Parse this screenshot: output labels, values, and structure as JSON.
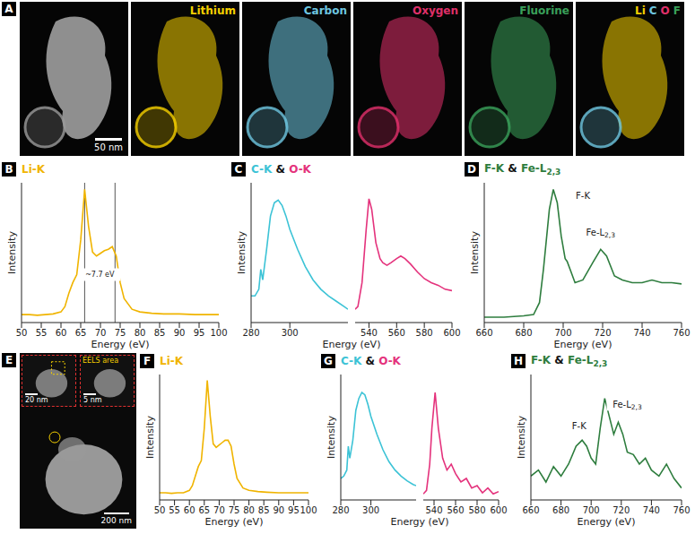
{
  "figure": {
    "A": {
      "letter": "A",
      "tiles": [
        {
          "scale_bar": "50 nm"
        },
        {
          "label": "Lithium",
          "color": "#f5d000"
        },
        {
          "label": "Carbon",
          "color": "#6ec6e0"
        },
        {
          "label": "Oxygen",
          "color": "#e0306a"
        },
        {
          "label": "Fluorine",
          "color": "#3aa05a"
        },
        {
          "labels": [
            {
              "text": "Li",
              "color": "#f5d000"
            },
            {
              "text": "C",
              "color": "#6ec6e0"
            },
            {
              "text": "O",
              "color": "#e0306a"
            },
            {
              "text": "F",
              "color": "#3aa05a"
            }
          ]
        }
      ]
    },
    "E": {
      "letter": "E",
      "scale_bar": "200 nm",
      "insets": [
        {
          "scale_bar": "20 nm"
        },
        {
          "label": "EELS area",
          "scale_bar": "5 nm"
        }
      ]
    }
  },
  "chart_data": [
    {
      "panel": "B",
      "type": "line",
      "title": "Li-K",
      "x_label": "Energy (eV)",
      "y_label": "Intensity",
      "tick_labels": "x",
      "xlim": [
        50,
        100
      ],
      "xticks": [
        50,
        55,
        60,
        65,
        70,
        75,
        80,
        85,
        90,
        95,
        100
      ],
      "ylim": [
        0,
        1.05
      ],
      "yticks": [],
      "reference_lines": [
        66,
        73.7
      ],
      "annotations": [
        {
          "text": "~7.7 eV",
          "x": 69.85,
          "y": 0.36
        }
      ],
      "series": [
        {
          "color": "#f0b400",
          "x": [
            50,
            52,
            54,
            56,
            58,
            60,
            61,
            62,
            63,
            64,
            65,
            66,
            67,
            68,
            69,
            70,
            71,
            72,
            73,
            74,
            75,
            76,
            78,
            80,
            83,
            86,
            90,
            94,
            98,
            100
          ],
          "values": [
            0.06,
            0.06,
            0.055,
            0.06,
            0.065,
            0.08,
            0.12,
            0.22,
            0.3,
            0.36,
            0.62,
            1.0,
            0.72,
            0.53,
            0.5,
            0.52,
            0.54,
            0.55,
            0.57,
            0.5,
            0.3,
            0.18,
            0.1,
            0.08,
            0.07,
            0.065,
            0.065,
            0.06,
            0.06,
            0.06
          ]
        }
      ]
    },
    {
      "panel": "C",
      "type": "line",
      "title": "C-K & O-K",
      "x_label": "Energy (eV)",
      "y_label": "Intensity",
      "tick_labels": "x",
      "ylim": [
        0,
        1.05
      ],
      "yticks": [],
      "series": [
        {
          "color": "#3cc3d6",
          "xlim": [
            280,
            330
          ],
          "xticks": [
            280,
            300
          ],
          "x": [
            280,
            282,
            284,
            285,
            286,
            288,
            290,
            292,
            294,
            296,
            298,
            300,
            304,
            308,
            312,
            316,
            320,
            324,
            328,
            330
          ],
          "values": [
            0.2,
            0.2,
            0.25,
            0.4,
            0.32,
            0.55,
            0.8,
            0.9,
            0.92,
            0.88,
            0.8,
            0.7,
            0.55,
            0.42,
            0.32,
            0.25,
            0.2,
            0.16,
            0.12,
            0.1
          ]
        },
        {
          "color": "#e4327c",
          "xlim": [
            530,
            600
          ],
          "xticks": [
            540,
            560,
            580,
            600
          ],
          "x": [
            530,
            532,
            535,
            538,
            540,
            542,
            545,
            548,
            550,
            553,
            556,
            560,
            563,
            566,
            570,
            575,
            580,
            585,
            590,
            595,
            600
          ],
          "values": [
            0.1,
            0.12,
            0.3,
            0.7,
            0.93,
            0.85,
            0.6,
            0.48,
            0.45,
            0.43,
            0.45,
            0.48,
            0.5,
            0.48,
            0.44,
            0.38,
            0.33,
            0.3,
            0.28,
            0.25,
            0.24
          ]
        }
      ]
    },
    {
      "panel": "D",
      "type": "line",
      "title": "F-K & Fe-L2,3",
      "x_label": "Energy (eV)",
      "y_label": "Intensity",
      "tick_labels": "x",
      "xlim": [
        660,
        760
      ],
      "xticks": [
        660,
        680,
        700,
        720,
        740,
        760
      ],
      "ylim": [
        0,
        1.05
      ],
      "yticks": [],
      "annotations": [
        {
          "text": "F-K",
          "x": 710,
          "y": 0.95
        },
        {
          "text": "Fe-L2,3",
          "x": 719,
          "y": 0.68
        }
      ],
      "series": [
        {
          "color": "#2e7d3e",
          "x": [
            660,
            670,
            680,
            685,
            688,
            690,
            693,
            695,
            697,
            699,
            701,
            702,
            704,
            706,
            710,
            715,
            719,
            722,
            726,
            730,
            735,
            740,
            745,
            750,
            755,
            760
          ],
          "values": [
            0.04,
            0.04,
            0.05,
            0.06,
            0.15,
            0.4,
            0.85,
            1.0,
            0.9,
            0.65,
            0.48,
            0.46,
            0.38,
            0.3,
            0.32,
            0.45,
            0.55,
            0.5,
            0.35,
            0.32,
            0.3,
            0.3,
            0.32,
            0.3,
            0.3,
            0.29
          ]
        }
      ]
    },
    {
      "panel": "F",
      "type": "line",
      "title": "Li-K",
      "x_label": "Energy (eV)",
      "y_label": "Intensity",
      "tick_labels": "x",
      "xlim": [
        50,
        100
      ],
      "xticks": [
        50,
        55,
        60,
        65,
        70,
        75,
        80,
        85,
        90,
        95,
        100
      ],
      "ylim": [
        0,
        1.05
      ],
      "yticks": [],
      "series": [
        {
          "color": "#f0b400",
          "x": [
            50,
            52,
            54,
            56,
            58,
            60,
            61,
            62,
            63,
            64,
            65,
            66,
            67,
            68,
            69,
            70,
            71,
            72,
            73,
            74,
            75,
            76,
            78,
            80,
            83,
            86,
            90,
            94,
            98,
            100
          ],
          "values": [
            0.06,
            0.06,
            0.055,
            0.06,
            0.06,
            0.08,
            0.12,
            0.2,
            0.28,
            0.33,
            0.6,
            1.0,
            0.7,
            0.47,
            0.44,
            0.46,
            0.48,
            0.5,
            0.5,
            0.45,
            0.3,
            0.18,
            0.1,
            0.08,
            0.07,
            0.065,
            0.06,
            0.06,
            0.06,
            0.06
          ]
        }
      ]
    },
    {
      "panel": "G",
      "type": "line",
      "title": "C-K & O-K",
      "x_label": "Energy (eV)",
      "y_label": "Intensity",
      "tick_labels": "x",
      "ylim": [
        0,
        1.05
      ],
      "yticks": [],
      "series": [
        {
          "color": "#3cc3d6",
          "xlim": [
            280,
            330
          ],
          "xticks": [
            280,
            300
          ],
          "x": [
            280,
            282,
            284,
            285,
            286,
            288,
            290,
            292,
            294,
            296,
            298,
            300,
            304,
            308,
            312,
            316,
            320,
            324,
            328,
            330
          ],
          "values": [
            0.18,
            0.2,
            0.25,
            0.45,
            0.35,
            0.5,
            0.75,
            0.85,
            0.9,
            0.88,
            0.8,
            0.7,
            0.55,
            0.42,
            0.32,
            0.25,
            0.2,
            0.16,
            0.13,
            0.12
          ]
        },
        {
          "color": "#e4327c",
          "xlim": [
            530,
            600
          ],
          "xticks": [
            540,
            560,
            580,
            600
          ],
          "x": [
            530,
            533,
            536,
            538,
            541,
            544,
            548,
            552,
            556,
            560,
            565,
            570,
            575,
            580,
            585,
            590,
            595,
            600
          ],
          "values": [
            0.05,
            0.08,
            0.3,
            0.6,
            0.9,
            0.6,
            0.35,
            0.25,
            0.3,
            0.22,
            0.15,
            0.18,
            0.1,
            0.12,
            0.06,
            0.1,
            0.05,
            0.07
          ]
        }
      ]
    },
    {
      "panel": "H",
      "type": "line",
      "title": "F-K & Fe-L2,3",
      "x_label": "Energy (eV)",
      "y_label": "Intensity",
      "tick_labels": "x",
      "xlim": [
        660,
        760
      ],
      "xticks": [
        660,
        680,
        700,
        720,
        740,
        760
      ],
      "ylim": [
        0,
        1.05
      ],
      "yticks": [],
      "annotations": [
        {
          "text": "F-K",
          "x": 692,
          "y": 0.62
        },
        {
          "text": "Fe-L2,3",
          "x": 724,
          "y": 0.8
        }
      ],
      "series": [
        {
          "color": "#2e7d3e",
          "x": [
            660,
            665,
            670,
            675,
            680,
            685,
            690,
            694,
            697,
            700,
            703,
            706,
            709,
            712,
            715,
            718,
            721,
            724,
            728,
            732,
            736,
            740,
            745,
            750,
            755,
            760
          ],
          "values": [
            0.2,
            0.25,
            0.15,
            0.28,
            0.2,
            0.3,
            0.45,
            0.5,
            0.45,
            0.35,
            0.3,
            0.6,
            0.85,
            0.7,
            0.55,
            0.65,
            0.55,
            0.4,
            0.38,
            0.3,
            0.35,
            0.25,
            0.2,
            0.3,
            0.18,
            0.1
          ]
        }
      ]
    }
  ]
}
